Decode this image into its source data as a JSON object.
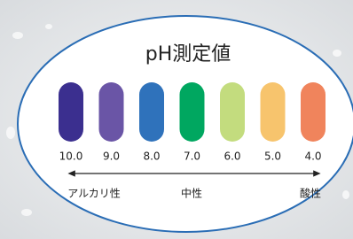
{
  "title": "pH測定値",
  "swatches": [
    {
      "label": "10.0",
      "color": "#3b2f8f"
    },
    {
      "label": "9.0",
      "color": "#6a55a6"
    },
    {
      "label": "8.0",
      "color": "#2f72bb"
    },
    {
      "label": "7.0",
      "color": "#00a760"
    },
    {
      "label": "6.0",
      "color": "#c3dc7e"
    },
    {
      "label": "5.0",
      "color": "#f7c46d"
    },
    {
      "label": "4.0",
      "color": "#f0845c"
    }
  ],
  "scale_labels": {
    "left": "アルカリ性",
    "center": "中性",
    "right": "酸性"
  }
}
